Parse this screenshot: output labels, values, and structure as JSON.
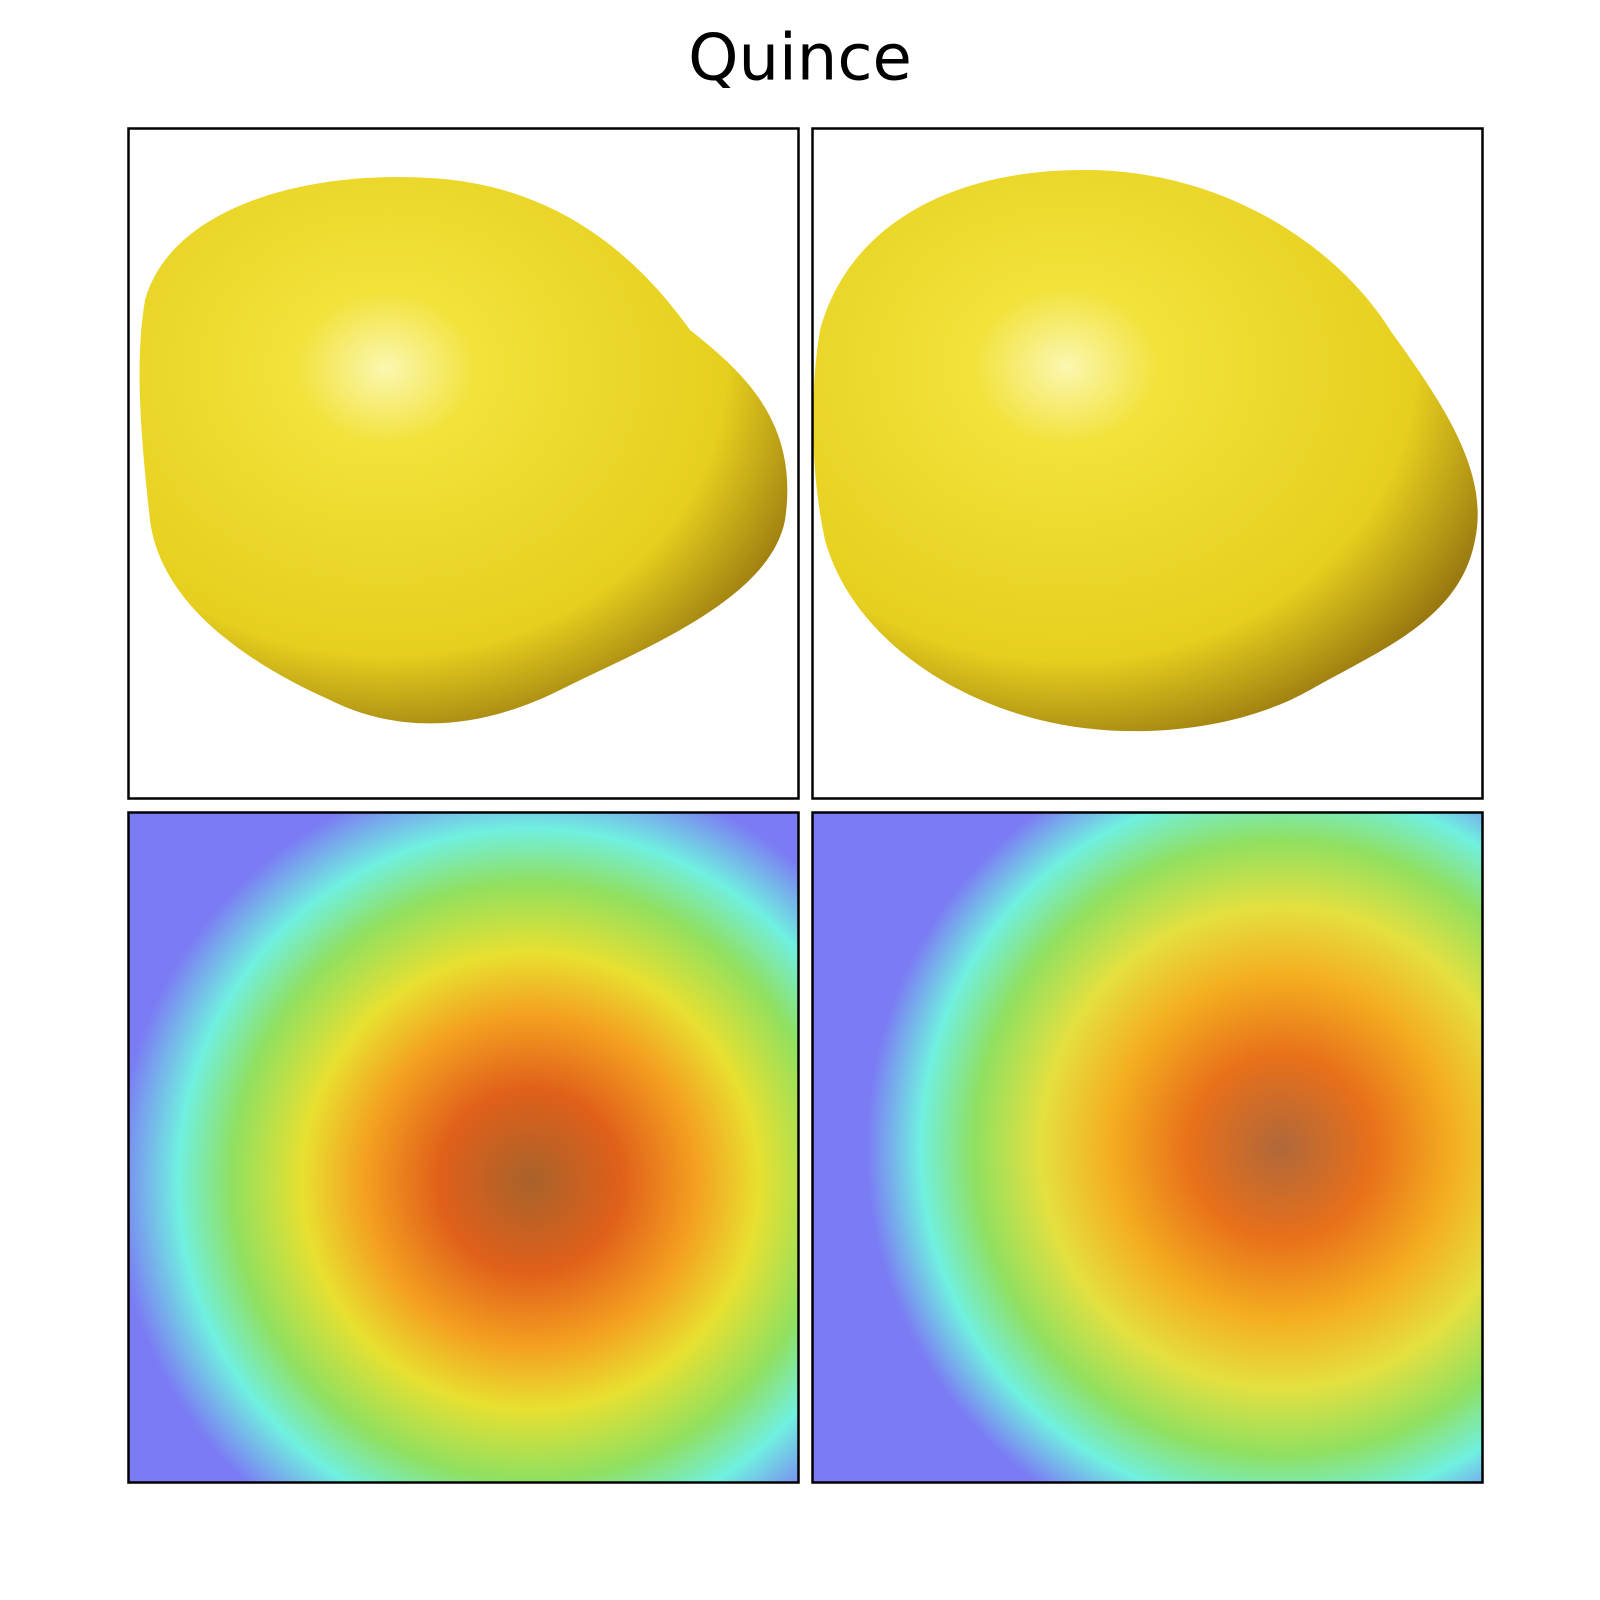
{
  "title": "Quince"
}
